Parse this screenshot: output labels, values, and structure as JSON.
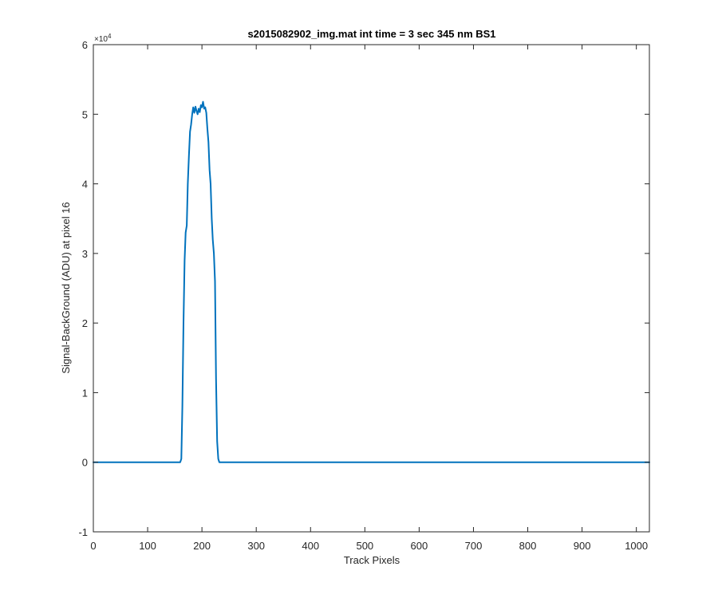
{
  "chart_data": {
    "type": "line",
    "title": "s2015082902_img.mat int time = 3 sec  345 nm BS1",
    "xlabel": "Track Pixels",
    "ylabel": "Signal-BackGround (ADU) at pixel 16",
    "xlim": [
      0,
      1024
    ],
    "ylim": [
      -10000,
      60000
    ],
    "xticks": [
      0,
      100,
      200,
      300,
      400,
      500,
      600,
      700,
      800,
      900,
      1000
    ],
    "xtick_labels": [
      "0",
      "100",
      "200",
      "300",
      "400",
      "500",
      "600",
      "700",
      "800",
      "900",
      "1000"
    ],
    "yticks": [
      -10000,
      0,
      10000,
      20000,
      30000,
      40000,
      50000,
      60000
    ],
    "ytick_labels": [
      "-1",
      "0",
      "1",
      "2",
      "3",
      "4",
      "5",
      "6"
    ],
    "y_exponent_base": "×10",
    "y_exponent_power": "4",
    "grid": false,
    "box": true,
    "series_color": "#0072BD",
    "series": [
      {
        "x": [
          0,
          100,
          150,
          160,
          162,
          164,
          166,
          168,
          170,
          172,
          174,
          176,
          178,
          180,
          182,
          184,
          186,
          188,
          190,
          192,
          194,
          196,
          198,
          200,
          202,
          204,
          206,
          208,
          210,
          212,
          214,
          216,
          218,
          220,
          222,
          224,
          226,
          228,
          230,
          232,
          236,
          300,
          500,
          700,
          900,
          1024
        ],
        "y": [
          0,
          0,
          0,
          0,
          500,
          8000,
          20000,
          29000,
          33000,
          34000,
          40000,
          44000,
          47500,
          48500,
          50000,
          51000,
          50200,
          51100,
          50500,
          50000,
          50800,
          50300,
          51300,
          51000,
          51800,
          50800,
          51000,
          50200,
          48000,
          46000,
          42000,
          40000,
          35000,
          32000,
          30000,
          26000,
          12000,
          3000,
          500,
          0,
          0,
          0,
          0,
          0,
          0,
          0
        ]
      }
    ]
  }
}
